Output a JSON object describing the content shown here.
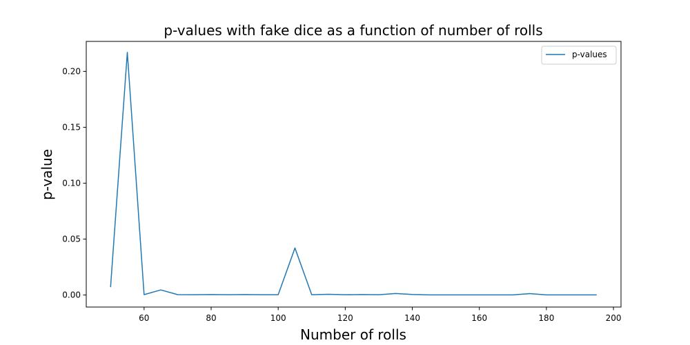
{
  "chart_data": {
    "type": "line",
    "title": "p-values with fake dice as a function of number of rolls",
    "xlabel": "Number of rolls",
    "ylabel": "p-value",
    "xlim": [
      42.75,
      202.25
    ],
    "ylim": [
      -0.0108,
      0.2268
    ],
    "x_ticks": [
      60,
      80,
      100,
      120,
      140,
      160,
      180,
      200
    ],
    "x_tick_labels": [
      "60",
      "80",
      "100",
      "120",
      "140",
      "160",
      "180",
      "200"
    ],
    "y_ticks": [
      0.0,
      0.05,
      0.1,
      0.15,
      0.2
    ],
    "y_tick_labels": [
      "0.00",
      "0.05",
      "0.10",
      "0.15",
      "0.20"
    ],
    "grid": false,
    "legend_position": "top-right",
    "series": [
      {
        "name": "p-values",
        "color": "#1f77b4",
        "x": [
          50,
          55,
          60,
          65,
          70,
          75,
          80,
          85,
          90,
          95,
          100,
          105,
          110,
          115,
          120,
          125,
          130,
          135,
          140,
          145,
          150,
          155,
          160,
          165,
          170,
          175,
          180,
          185,
          190,
          195
        ],
        "y": [
          0.007,
          0.217,
          0.0003,
          0.0045,
          0.0003,
          0.0002,
          0.0004,
          0.0002,
          0.0004,
          0.0002,
          0.0002,
          0.042,
          0.0002,
          0.0006,
          0.0002,
          0.0004,
          0.0002,
          0.0013,
          0.0005,
          0.0001,
          0.0001,
          0.0001,
          0.0001,
          0.0001,
          0.0001,
          0.0012,
          0.0001,
          0.0001,
          0.0001,
          0.0001
        ]
      }
    ]
  }
}
